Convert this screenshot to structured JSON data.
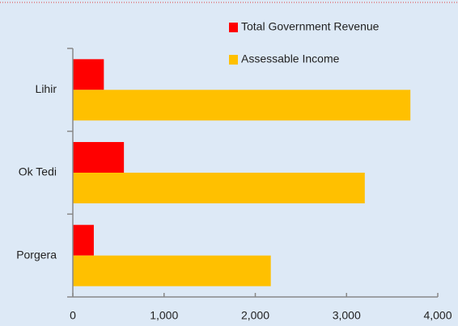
{
  "chart_data": {
    "type": "hbar",
    "categories": [
      "Lihir",
      "Ok Tedi",
      "Porgera"
    ],
    "series": [
      {
        "name": "Total Government Revenue",
        "color": "#ff0000",
        "values": [
          340,
          560,
          230
        ]
      },
      {
        "name": "Assessable Income",
        "color": "#ffc000",
        "values": [
          3700,
          3200,
          2170
        ]
      }
    ],
    "xlim": [
      0,
      4000
    ],
    "xticks": [
      0,
      {
        "value": 1000,
        "label": "1,000"
      },
      {
        "value": 2000,
        "label": "2,000"
      },
      {
        "value": 3000,
        "label": "3,000"
      },
      {
        "value": 4000,
        "label": "4,000"
      }
    ],
    "legend": "top-right"
  }
}
